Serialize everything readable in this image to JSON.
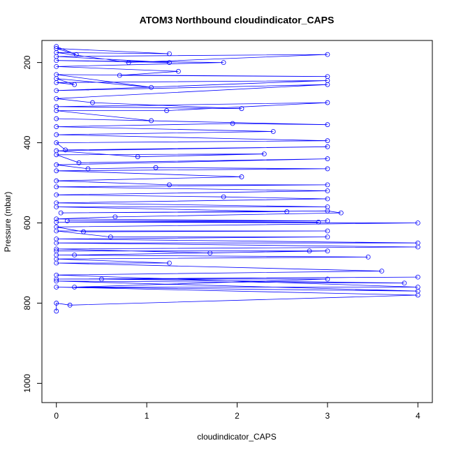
{
  "chart_data": {
    "type": "line",
    "title": "ATOM3 Northbound cloudindicator_CAPS",
    "x_label": "cloudindicator_CAPS",
    "y_label": "Pressure (mbar)",
    "color": "#0000ff",
    "xlim": [
      -0.16,
      4.16
    ],
    "xticks": [
      0,
      1,
      2,
      3,
      4
    ],
    "ylim": [
      1048,
      145
    ],
    "yticks": [
      200,
      400,
      600,
      800,
      1000
    ],
    "x": [
      0,
      0,
      0.15,
      4,
      0,
      4,
      0,
      3.85,
      0.5,
      4,
      0,
      3,
      0.2,
      4,
      0,
      3.6,
      0,
      1.25,
      0,
      3.45,
      0,
      0.2,
      3,
      0,
      2.8,
      1.7,
      0,
      4,
      0,
      4,
      0,
      3,
      0.6,
      0,
      3,
      0.3,
      0,
      4,
      0,
      2.9,
      0.12,
      3,
      0,
      0.65,
      3.15,
      3,
      0.05,
      2.55,
      0,
      3,
      0,
      3,
      1.85,
      0,
      3,
      0,
      3,
      1.25,
      0,
      2.05,
      0,
      3,
      1.1,
      0.35,
      0,
      3,
      0.25,
      0,
      2.3,
      0.9,
      0,
      3,
      0.1,
      0,
      3,
      0,
      2.4,
      0,
      1.95,
      3,
      0,
      1.05,
      0,
      1.22,
      3,
      0,
      2.05,
      0.4,
      0,
      3,
      0,
      3,
      0,
      0.2,
      0,
      1.05,
      0,
      3,
      0.7,
      1.35,
      0,
      1.85,
      0,
      1.25,
      0,
      3,
      0.8,
      0,
      1.25,
      0,
      0.22,
      0
    ],
    "values": [
      820,
      800,
      805,
      780,
      760,
      770,
      745,
      750,
      740,
      735,
      740,
      740,
      760,
      760,
      730,
      720,
      700,
      700,
      690,
      685,
      680,
      680,
      670,
      670,
      670,
      675,
      665,
      660,
      650,
      650,
      640,
      635,
      635,
      620,
      620,
      622,
      610,
      600,
      598,
      598,
      595,
      595,
      590,
      585,
      575,
      570,
      575,
      572,
      560,
      560,
      550,
      540,
      535,
      530,
      520,
      510,
      505,
      505,
      495,
      485,
      470,
      465,
      462,
      465,
      455,
      440,
      450,
      430,
      428,
      435,
      420,
      410,
      418,
      400,
      395,
      380,
      372,
      360,
      352,
      355,
      340,
      345,
      320,
      320,
      300,
      310,
      315,
      300,
      290,
      255,
      270,
      245,
      250,
      255,
      240,
      262,
      230,
      235,
      232,
      222,
      210,
      200,
      195,
      200,
      185,
      180,
      200,
      175,
      178,
      165,
      180,
      160
    ]
  }
}
